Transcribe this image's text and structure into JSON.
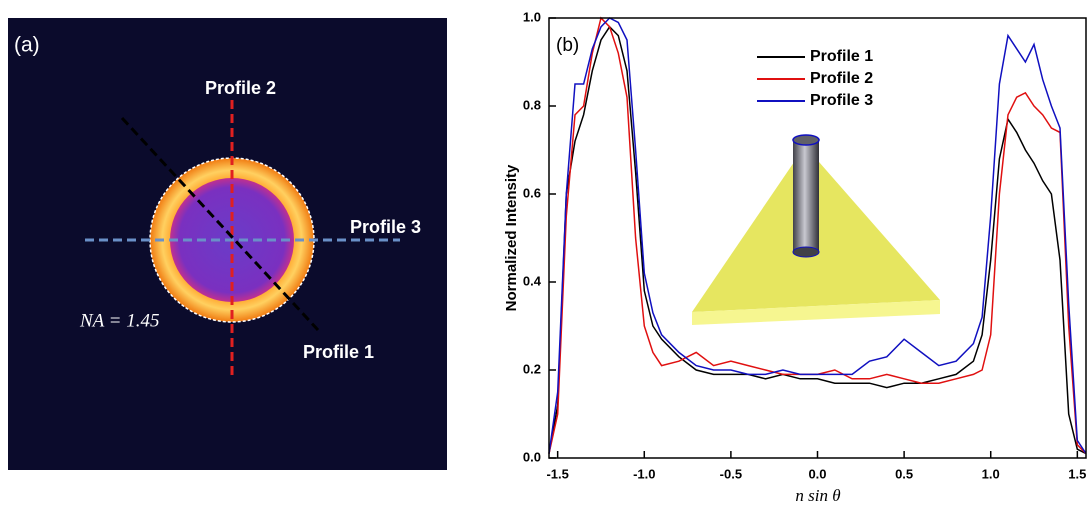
{
  "image_panel": {
    "label": "(a)",
    "profile_labels": [
      "Profile 1",
      "Profile 2",
      "Profile 3"
    ],
    "na_label": "NA = 1.45"
  },
  "chart_data": {
    "type": "line",
    "panel_label": "(b)",
    "ylabel": "Normalized Intensity",
    "xlabel": "n sin θ",
    "x": [
      -1.55,
      -1.5,
      -1.45,
      -1.4,
      -1.35,
      -1.3,
      -1.25,
      -1.2,
      -1.15,
      -1.1,
      -1.05,
      -1.0,
      -0.95,
      -0.9,
      -0.8,
      -0.7,
      -0.6,
      -0.5,
      -0.4,
      -0.3,
      -0.2,
      -0.1,
      0,
      0.1,
      0.2,
      0.3,
      0.4,
      0.5,
      0.6,
      0.7,
      0.8,
      0.9,
      0.95,
      1.0,
      1.05,
      1.1,
      1.15,
      1.2,
      1.25,
      1.3,
      1.35,
      1.4,
      1.45,
      1.5,
      1.55
    ],
    "series": [
      {
        "name": "Profile 1",
        "color": "#000000",
        "values": [
          0.01,
          0.12,
          0.6,
          0.72,
          0.78,
          0.88,
          0.95,
          0.98,
          0.96,
          0.88,
          0.65,
          0.38,
          0.3,
          0.27,
          0.23,
          0.2,
          0.19,
          0.19,
          0.19,
          0.18,
          0.19,
          0.18,
          0.18,
          0.17,
          0.17,
          0.17,
          0.16,
          0.17,
          0.17,
          0.18,
          0.19,
          0.22,
          0.28,
          0.45,
          0.68,
          0.77,
          0.74,
          0.7,
          0.67,
          0.63,
          0.6,
          0.45,
          0.1,
          0.02,
          0.01
        ]
      },
      {
        "name": "Profile 2",
        "color": "#e01010",
        "values": [
          0.01,
          0.1,
          0.55,
          0.78,
          0.8,
          0.92,
          1.0,
          0.98,
          0.92,
          0.82,
          0.5,
          0.3,
          0.24,
          0.21,
          0.22,
          0.24,
          0.21,
          0.22,
          0.21,
          0.2,
          0.19,
          0.19,
          0.19,
          0.2,
          0.18,
          0.18,
          0.19,
          0.18,
          0.17,
          0.17,
          0.18,
          0.19,
          0.2,
          0.28,
          0.6,
          0.78,
          0.82,
          0.83,
          0.8,
          0.78,
          0.75,
          0.74,
          0.3,
          0.03,
          0.01
        ]
      },
      {
        "name": "Profile 3",
        "color": "#1010c0",
        "values": [
          0.01,
          0.15,
          0.6,
          0.85,
          0.85,
          0.93,
          0.98,
          1.0,
          0.99,
          0.95,
          0.7,
          0.42,
          0.33,
          0.28,
          0.24,
          0.21,
          0.2,
          0.2,
          0.19,
          0.19,
          0.2,
          0.19,
          0.19,
          0.19,
          0.19,
          0.22,
          0.23,
          0.27,
          0.24,
          0.21,
          0.22,
          0.26,
          0.32,
          0.55,
          0.85,
          0.96,
          0.93,
          0.9,
          0.94,
          0.86,
          0.8,
          0.75,
          0.35,
          0.04,
          0.01
        ]
      }
    ],
    "xlim": [
      -1.55,
      1.55
    ],
    "ylim": [
      0,
      1
    ],
    "xticks": [
      -1.5,
      {
        "value": -1,
        "label": "-1.0"
      },
      -0.5,
      {
        "value": 0,
        "label": "0.0"
      },
      0.5,
      {
        "value": 1,
        "label": "1.0"
      },
      1.5
    ],
    "yticks": [
      {
        "value": 0,
        "label": "0.0"
      },
      0.2,
      0.4,
      0.6,
      0.8,
      {
        "value": 1,
        "label": "1.0"
      }
    ],
    "legend": "top"
  }
}
